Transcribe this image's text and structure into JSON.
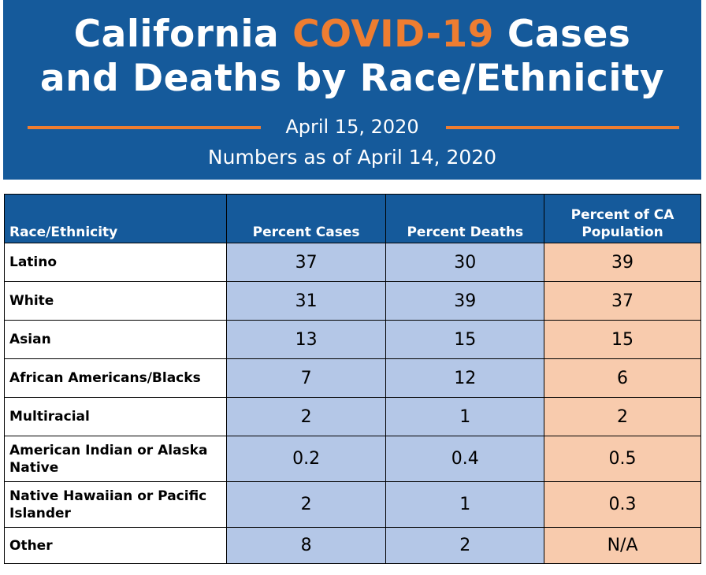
{
  "header": {
    "title_line1_pre": "California ",
    "title_line1_accent": "COVID-19",
    "title_line1_post": " Cases",
    "title_line2": "and Deaths by Race/Ethnicity",
    "date": "April 15, 2020",
    "as_of": "Numbers as of April 14, 2020"
  },
  "colors": {
    "banner": "#155a9b",
    "accent": "#ee7d31",
    "cases_deaths_cells": "#b4c7e7",
    "population_cells": "#f8cbad"
  },
  "table": {
    "columns": [
      "Race/Ethnicity",
      "Percent Cases",
      "Percent Deaths",
      "Percent of CA Population"
    ],
    "rows": [
      {
        "name": "Latino",
        "cases": "37",
        "deaths": "30",
        "population": "39"
      },
      {
        "name": "White",
        "cases": "31",
        "deaths": "39",
        "population": "37"
      },
      {
        "name": "Asian",
        "cases": "13",
        "deaths": "15",
        "population": "15"
      },
      {
        "name": "African Americans/Blacks",
        "cases": "7",
        "deaths": "12",
        "population": "6"
      },
      {
        "name": "Multiracial",
        "cases": "2",
        "deaths": "1",
        "population": "2"
      },
      {
        "name": "American Indian or Alaska Native",
        "cases": "0.2",
        "deaths": "0.4",
        "population": "0.5"
      },
      {
        "name": "Native Hawaiian or Pacific Islander",
        "cases": "2",
        "deaths": "1",
        "population": "0.3"
      },
      {
        "name": "Other",
        "cases": "8",
        "deaths": "2",
        "population": "N/A"
      }
    ]
  }
}
